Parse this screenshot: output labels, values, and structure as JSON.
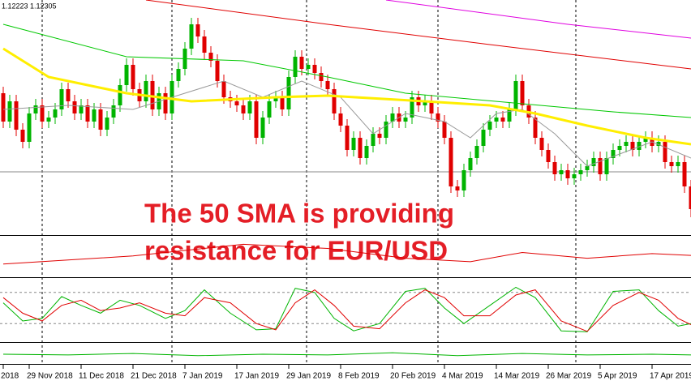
{
  "chart_data": [
    {
      "type": "candlestick",
      "title": "1.12223 1.12305",
      "annotation": [
        "The 50 SMA is providing",
        "resistance for EUR/USD"
      ],
      "up_color": "#00b400",
      "down_color": "#e00000",
      "ylim": [
        1.12,
        1.149
      ],
      "hline": 1.1278,
      "categories": [
        "2018",
        null,
        null,
        null,
        "29 Nov 2018",
        null,
        null,
        null,
        null,
        null,
        null,
        null,
        "11 Dec 2018",
        null,
        null,
        null,
        null,
        null,
        null,
        null,
        "21 Dec 2018",
        null,
        null,
        null,
        null,
        null,
        null,
        null,
        "7 Jan 2019",
        null,
        null,
        null,
        null,
        null,
        null,
        null,
        "17 Jan 2019",
        null,
        null,
        null,
        null,
        null,
        null,
        null,
        "29 Jan 2019",
        null,
        null,
        null,
        null,
        null,
        null,
        null,
        "8 Feb 2019",
        null,
        null,
        null,
        null,
        null,
        null,
        null,
        "20 Feb 2019",
        null,
        null,
        null,
        null,
        null,
        null,
        null,
        "4 Mar 2019",
        null,
        null,
        null,
        null,
        null,
        null,
        null,
        "14 Mar 2019",
        null,
        null,
        null,
        null,
        null,
        null,
        null,
        "26 Mar 2019",
        null,
        null,
        null,
        null,
        null,
        null,
        null,
        "5 Apr 2019",
        null,
        null,
        null,
        null,
        null,
        null,
        null,
        "17 Apr 2019",
        null,
        null,
        null,
        null,
        null,
        null
      ],
      "open": [
        1.1375,
        1.134,
        1.1365,
        1.133,
        1.1315,
        1.135,
        1.136,
        1.134,
        1.1345,
        1.1355,
        1.138,
        1.1365,
        1.135,
        1.136,
        1.134,
        1.1355,
        1.133,
        1.1345,
        1.136,
        1.1385,
        1.141,
        1.138,
        1.1365,
        1.139,
        1.1355,
        1.1375,
        1.135,
        1.139,
        1.1405,
        1.143,
        1.146,
        1.1445,
        1.1425,
        1.1415,
        1.139,
        1.137,
        1.1365,
        1.136,
        1.135,
        1.1365,
        1.132,
        1.1345,
        1.1365,
        1.137,
        1.1355,
        1.1395,
        1.142,
        1.1405,
        1.141,
        1.14,
        1.139,
        1.138,
        1.135,
        1.1335,
        1.1305,
        1.132,
        1.1295,
        1.131,
        1.1325,
        1.132,
        1.134,
        1.135,
        1.134,
        1.1345,
        1.137,
        1.136,
        1.1365,
        1.135,
        1.134,
        1.132,
        1.126,
        1.1255,
        1.128,
        1.1295,
        1.131,
        1.133,
        1.134,
        1.1345,
        1.134,
        1.1355,
        1.139,
        1.136,
        1.1345,
        1.132,
        1.1305,
        1.129,
        1.1275,
        1.128,
        1.127,
        1.1275,
        1.128,
        1.1285,
        1.1295,
        1.1275,
        1.1295,
        1.1305,
        1.131,
        1.1315,
        1.1305,
        1.1315,
        1.132,
        1.131,
        1.1315,
        1.129,
        1.1285,
        1.129,
        1.126
      ],
      "high": [
        1.1383,
        1.1373,
        1.1373,
        1.1338,
        1.1358,
        1.1368,
        1.1368,
        1.1353,
        1.1363,
        1.1388,
        1.1388,
        1.1373,
        1.1368,
        1.1368,
        1.1363,
        1.1363,
        1.1353,
        1.1368,
        1.1393,
        1.1418,
        1.1418,
        1.1388,
        1.1398,
        1.1398,
        1.1383,
        1.1383,
        1.1398,
        1.1413,
        1.1438,
        1.1468,
        1.1468,
        1.1453,
        1.1433,
        1.1423,
        1.1398,
        1.1378,
        1.1373,
        1.1368,
        1.1373,
        1.1373,
        1.1353,
        1.1373,
        1.1378,
        1.1378,
        1.1403,
        1.1428,
        1.1428,
        1.1418,
        1.1418,
        1.1408,
        1.1398,
        1.1388,
        1.1358,
        1.1343,
        1.1328,
        1.1328,
        1.1318,
        1.1333,
        1.1333,
        1.1348,
        1.1358,
        1.1358,
        1.1353,
        1.1378,
        1.1378,
        1.1373,
        1.1373,
        1.1358,
        1.1348,
        1.1328,
        1.1268,
        1.1288,
        1.1303,
        1.1318,
        1.1338,
        1.1348,
        1.1353,
        1.1353,
        1.1363,
        1.1398,
        1.1398,
        1.1368,
        1.1353,
        1.1328,
        1.1313,
        1.1298,
        1.1288,
        1.1288,
        1.1283,
        1.1288,
        1.1293,
        1.1303,
        1.1303,
        1.1303,
        1.1313,
        1.1318,
        1.1323,
        1.1323,
        1.1323,
        1.1328,
        1.1328,
        1.1323,
        1.1323,
        1.1298,
        1.1298,
        1.1298,
        1.1268
      ],
      "low": [
        1.1332,
        1.1332,
        1.1322,
        1.1307,
        1.1307,
        1.1342,
        1.1332,
        1.1332,
        1.1337,
        1.1347,
        1.1357,
        1.1342,
        1.1342,
        1.1332,
        1.1332,
        1.1322,
        1.1322,
        1.1337,
        1.1352,
        1.1377,
        1.1372,
        1.1357,
        1.1357,
        1.1347,
        1.1347,
        1.1342,
        1.1342,
        1.1382,
        1.1397,
        1.1422,
        1.1437,
        1.1417,
        1.1407,
        1.1382,
        1.1362,
        1.1357,
        1.1352,
        1.1342,
        1.1342,
        1.1312,
        1.1312,
        1.1337,
        1.1357,
        1.1347,
        1.1347,
        1.1387,
        1.1397,
        1.1397,
        1.1392,
        1.1382,
        1.1372,
        1.1342,
        1.1327,
        1.1297,
        1.1297,
        1.1287,
        1.1287,
        1.1302,
        1.1312,
        1.1312,
        1.1332,
        1.1332,
        1.1332,
        1.1337,
        1.1352,
        1.1352,
        1.1342,
        1.1332,
        1.1312,
        1.1252,
        1.1247,
        1.1247,
        1.1272,
        1.1287,
        1.1302,
        1.1322,
        1.1332,
        1.1332,
        1.1332,
        1.1347,
        1.1352,
        1.1337,
        1.1312,
        1.1297,
        1.1282,
        1.1267,
        1.1267,
        1.1262,
        1.1262,
        1.1267,
        1.1272,
        1.1277,
        1.1267,
        1.1267,
        1.1287,
        1.1297,
        1.1302,
        1.1297,
        1.1297,
        1.1307,
        1.1302,
        1.1302,
        1.1282,
        1.1277,
        1.1277,
        1.1252,
        1.1222
      ],
      "close": [
        1.134,
        1.1365,
        1.133,
        1.1315,
        1.135,
        1.136,
        1.134,
        1.1345,
        1.1355,
        1.138,
        1.1365,
        1.135,
        1.136,
        1.134,
        1.1355,
        1.133,
        1.1345,
        1.136,
        1.1385,
        1.141,
        1.138,
        1.1365,
        1.139,
        1.1355,
        1.1375,
        1.135,
        1.139,
        1.1405,
        1.143,
        1.146,
        1.1445,
        1.1425,
        1.1415,
        1.139,
        1.137,
        1.1365,
        1.136,
        1.135,
        1.1365,
        1.132,
        1.1345,
        1.1365,
        1.137,
        1.1355,
        1.1395,
        1.142,
        1.1405,
        1.141,
        1.14,
        1.139,
        1.138,
        1.135,
        1.1335,
        1.1305,
        1.132,
        1.1295,
        1.131,
        1.1325,
        1.132,
        1.134,
        1.135,
        1.134,
        1.1345,
        1.137,
        1.136,
        1.1365,
        1.135,
        1.134,
        1.132,
        1.126,
        1.1255,
        1.128,
        1.1295,
        1.131,
        1.133,
        1.134,
        1.1345,
        1.134,
        1.1355,
        1.139,
        1.136,
        1.1345,
        1.132,
        1.1305,
        1.129,
        1.1275,
        1.128,
        1.127,
        1.1275,
        1.128,
        1.1285,
        1.1295,
        1.1275,
        1.1295,
        1.1305,
        1.131,
        1.1315,
        1.1305,
        1.1315,
        1.132,
        1.131,
        1.1315,
        1.129,
        1.1285,
        1.129,
        1.126,
        1.1232
      ],
      "lines": [
        {
          "color": "#e00000",
          "x": [
            22,
            50,
            75,
            106
          ],
          "values": [
            1.149,
            1.146,
            1.1435,
            1.1405
          ]
        },
        {
          "color": "#e000e0",
          "x": [
            59,
            87,
            106
          ],
          "values": [
            1.149,
            1.146,
            1.1443
          ]
        },
        {
          "color": "#00c800",
          "x": [
            0,
            19,
            37,
            50,
            62,
            80,
            94,
            106
          ],
          "values": [
            1.146,
            1.142,
            1.1415,
            1.1395,
            1.1375,
            1.1362,
            1.1352,
            1.1345
          ]
        },
        {
          "color": "#999999",
          "x": [
            0,
            10,
            20,
            28,
            34,
            40,
            46,
            52,
            57,
            62,
            68,
            72,
            76,
            80,
            85,
            90,
            95,
            100,
            106
          ],
          "values": [
            1.1355,
            1.136,
            1.1355,
            1.1375,
            1.139,
            1.137,
            1.139,
            1.137,
            1.1325,
            1.135,
            1.134,
            1.132,
            1.135,
            1.1355,
            1.1325,
            1.1285,
            1.13,
            1.1315,
            1.1295
          ]
        },
        {
          "color": "#ffee00",
          "x": [
            0,
            7,
            19,
            29,
            42,
            50,
            65,
            75,
            82,
            90,
            99,
            106
          ],
          "values": [
            1.143,
            1.1395,
            1.1375,
            1.1365,
            1.137,
            1.1372,
            1.1365,
            1.136,
            1.135,
            1.1335,
            1.132,
            1.1312
          ]
        }
      ]
    },
    {
      "type": "line",
      "ylim": [
        -30,
        30
      ],
      "series": [
        {
          "color": "#e00000",
          "x": [
            0,
            20,
            37,
            50,
            62,
            72,
            80,
            90,
            100,
            106
          ],
          "values": [
            -13,
            1,
            21,
            14,
            -3,
            -9,
            7,
            -3,
            5,
            2
          ]
        }
      ]
    },
    {
      "type": "line",
      "ylim": [
        0,
        100
      ],
      "levels": [
        80,
        20
      ],
      "series": [
        {
          "color": "#00b400",
          "x": [
            0,
            3,
            6,
            9,
            12,
            15,
            18,
            21,
            25,
            28,
            31,
            35,
            39,
            42,
            45,
            48,
            51,
            54,
            58,
            62,
            65,
            68,
            71,
            75,
            79,
            82,
            86,
            90,
            94,
            98,
            101,
            104,
            106
          ],
          "values": [
            60,
            25,
            30,
            72,
            55,
            40,
            65,
            55,
            30,
            45,
            85,
            40,
            8,
            10,
            88,
            80,
            30,
            6,
            20,
            82,
            88,
            50,
            20,
            55,
            90,
            70,
            6,
            4,
            82,
            85,
            45,
            15,
            20
          ]
        },
        {
          "color": "#e00000",
          "x": [
            0,
            3,
            6,
            9,
            12,
            15,
            18,
            21,
            25,
            28,
            31,
            35,
            39,
            42,
            45,
            48,
            51,
            54,
            58,
            62,
            65,
            68,
            71,
            75,
            79,
            82,
            86,
            90,
            94,
            98,
            101,
            104,
            106
          ],
          "values": [
            70,
            40,
            25,
            55,
            65,
            45,
            50,
            60,
            40,
            35,
            70,
            60,
            20,
            8,
            60,
            85,
            55,
            15,
            10,
            60,
            85,
            70,
            35,
            35,
            75,
            85,
            25,
            5,
            55,
            80,
            65,
            30,
            18
          ]
        }
      ]
    },
    {
      "type": "line",
      "ylim": [
        0,
        100
      ],
      "series": [
        {
          "color": "#00b400",
          "x": [
            0,
            10,
            20,
            30,
            40,
            50,
            60,
            70,
            80,
            90,
            100,
            106
          ],
          "values": [
            50,
            45,
            55,
            40,
            50,
            45,
            60,
            40,
            55,
            45,
            50,
            45
          ]
        }
      ]
    }
  ]
}
